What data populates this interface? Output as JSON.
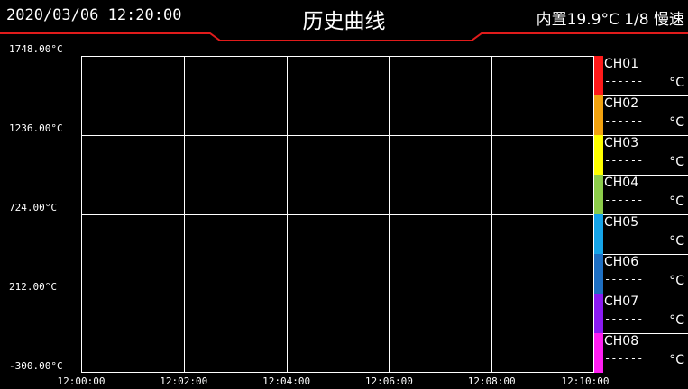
{
  "header": {
    "datetime": "2020/03/06 12:20:00",
    "title": "历史曲线",
    "status": "内置19.9°C 1/8 慢速",
    "accent_color": "#e11b1b"
  },
  "chart_data": {
    "type": "line",
    "xlabel": "",
    "ylabel": "",
    "x_tick_labels": [
      "12:00:00",
      "12:02:00",
      "12:04:00",
      "12:06:00",
      "12:08:00",
      "12:10:00"
    ],
    "y_tick_labels": [
      "1748.00°C",
      "1236.00°C",
      "724.00°C",
      "212.00°C",
      "-300.00°C"
    ],
    "ylim": [
      -300,
      1748
    ],
    "xlim": [
      "12:00:00",
      "12:10:00"
    ],
    "grid": true,
    "series": [
      {
        "name": "CH01",
        "color": "#ff1a1a",
        "values": []
      },
      {
        "name": "CH02",
        "color": "#f2a20f",
        "values": []
      },
      {
        "name": "CH03",
        "color": "#ffff00",
        "values": []
      },
      {
        "name": "CH04",
        "color": "#8ccc4a",
        "values": []
      },
      {
        "name": "CH05",
        "color": "#16a4e8",
        "values": []
      },
      {
        "name": "CH06",
        "color": "#1e6fc2",
        "values": []
      },
      {
        "name": "CH07",
        "color": "#8a1bf2",
        "values": []
      },
      {
        "name": "CH08",
        "color": "#ff1ff2",
        "values": []
      }
    ]
  },
  "legend": {
    "value_placeholder": "------",
    "unit": "°C"
  }
}
